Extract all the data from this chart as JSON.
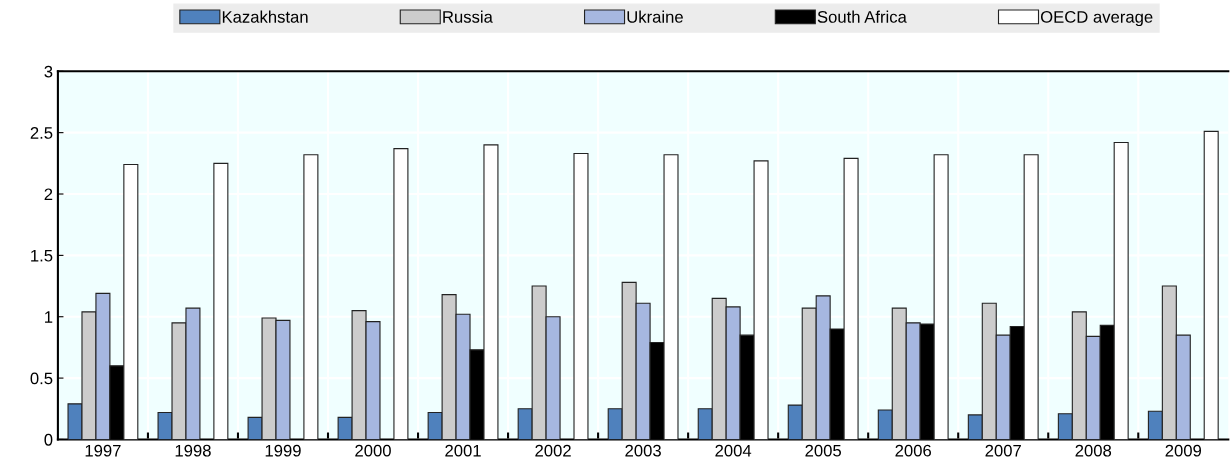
{
  "chart_data": {
    "type": "bar",
    "categories": [
      "1997",
      "1998",
      "1999",
      "2000",
      "2001",
      "2002",
      "2003",
      "2004",
      "2005",
      "2006",
      "2007",
      "2008",
      "2009"
    ],
    "series": [
      {
        "name": "Kazakhstan",
        "color": "#4f81bd",
        "values": [
          0.29,
          0.22,
          0.18,
          0.18,
          0.22,
          0.25,
          0.25,
          0.25,
          0.28,
          0.24,
          0.2,
          0.21,
          0.23
        ]
      },
      {
        "name": "Russia",
        "color": "#cccccc",
        "values": [
          1.04,
          0.95,
          0.99,
          1.05,
          1.18,
          1.25,
          1.28,
          1.15,
          1.07,
          1.07,
          1.11,
          1.04,
          1.25
        ]
      },
      {
        "name": "Ukraine",
        "color": "#a6b7e0",
        "values": [
          1.19,
          1.07,
          0.97,
          0.96,
          1.02,
          1.0,
          1.11,
          1.08,
          1.17,
          0.95,
          0.85,
          0.84,
          0.85
        ]
      },
      {
        "name": "South Africa",
        "color": "#000000",
        "values": [
          0.6,
          null,
          null,
          null,
          0.73,
          null,
          0.79,
          0.85,
          0.9,
          0.94,
          0.92,
          0.93,
          null
        ]
      },
      {
        "name": "OECD average",
        "color": "#ffffff",
        "values": [
          2.24,
          2.25,
          2.32,
          2.37,
          2.4,
          2.33,
          2.32,
          2.27,
          2.29,
          2.32,
          2.32,
          2.42,
          2.51
        ]
      }
    ],
    "ylim": [
      0,
      3
    ],
    "yticks": [
      0,
      0.5,
      1,
      1.5,
      2,
      2.5,
      3
    ],
    "grid": true,
    "legend": "top"
  }
}
